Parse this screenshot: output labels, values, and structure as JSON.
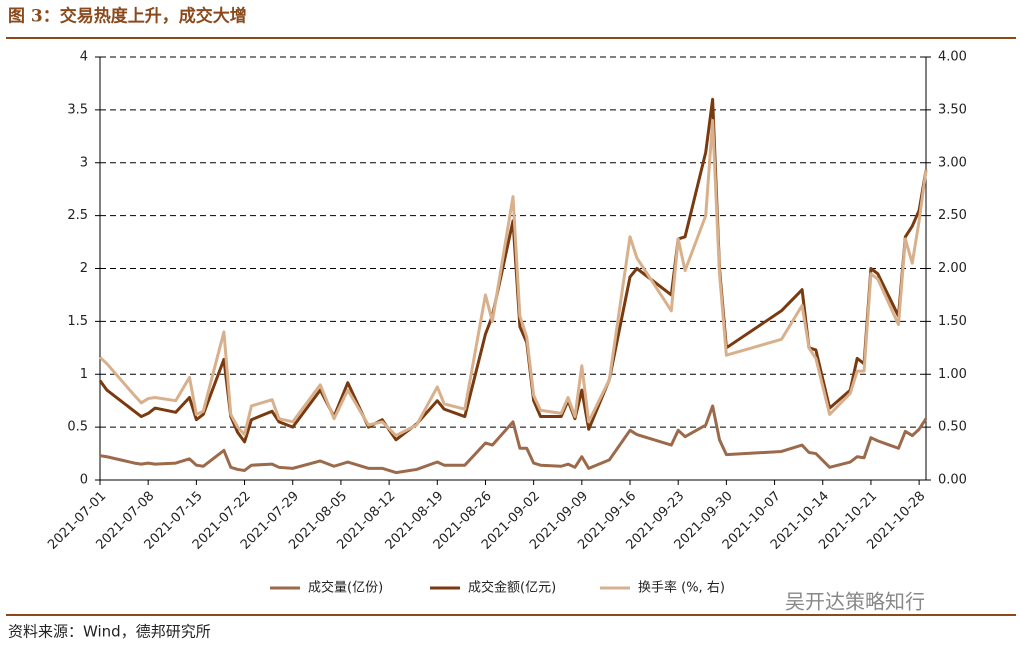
{
  "chart_data": {
    "type": "line",
    "title": "图 3：交易热度上升，成交大增",
    "source": "资料来源：Wind，德邦研究所",
    "watermark": "吴开达策略知行",
    "x": [
      "2021-07-01",
      "2021-07-02",
      "2021-07-06",
      "2021-07-07",
      "2021-07-08",
      "2021-07-09",
      "2021-07-12",
      "2021-07-14",
      "2021-07-15",
      "2021-07-16",
      "2021-07-19",
      "2021-07-20",
      "2021-07-21",
      "2021-07-22",
      "2021-07-23",
      "2021-07-26",
      "2021-07-27",
      "2021-07-29",
      "2021-08-02",
      "2021-08-04",
      "2021-08-06",
      "2021-08-09",
      "2021-08-11",
      "2021-08-13",
      "2021-08-16",
      "2021-08-19",
      "2021-08-20",
      "2021-08-23",
      "2021-08-26",
      "2021-08-27",
      "2021-08-30",
      "2021-08-31",
      "2021-09-01",
      "2021-09-02",
      "2021-09-03",
      "2021-09-06",
      "2021-09-07",
      "2021-09-08",
      "2021-09-09",
      "2021-09-10",
      "2021-09-13",
      "2021-09-16",
      "2021-09-17",
      "2021-09-22",
      "2021-09-23",
      "2021-09-24",
      "2021-09-27",
      "2021-09-28",
      "2021-09-29",
      "2021-09-30",
      "2021-10-08",
      "2021-10-11",
      "2021-10-12",
      "2021-10-13",
      "2021-10-15",
      "2021-10-18",
      "2021-10-19",
      "2021-10-20",
      "2021-10-21",
      "2021-10-22",
      "2021-10-25",
      "2021-10-26",
      "2021-10-27",
      "2021-10-28",
      "2021-10-29"
    ],
    "xlim": [
      "2021-07-01",
      "2021-10-29"
    ],
    "xticks": [
      "2021-07-01",
      "2021-07-08",
      "2021-07-15",
      "2021-07-22",
      "2021-07-29",
      "2021-08-05",
      "2021-08-12",
      "2021-08-19",
      "2021-08-26",
      "2021-09-02",
      "2021-09-09",
      "2021-09-16",
      "2021-09-23",
      "2021-09-30",
      "2021-10-07",
      "2021-10-14",
      "2021-10-21",
      "2021-10-28"
    ],
    "ylim": [
      0,
      4
    ],
    "yticks": [
      0,
      0.5,
      1,
      1.5,
      2,
      2.5,
      3,
      3.5,
      4
    ],
    "y2lim": [
      0,
      4
    ],
    "y2ticks": [
      {
        "value": 0,
        "label": "0.00"
      },
      {
        "value": 0.5,
        "label": "0.50"
      },
      {
        "value": 1,
        "label": "1.00"
      },
      {
        "value": 1.5,
        "label": "1.50"
      },
      {
        "value": 2,
        "label": "2.00"
      },
      {
        "value": 2.5,
        "label": "2.50"
      },
      {
        "value": 3,
        "label": "3.00"
      },
      {
        "value": 3.5,
        "label": "3.50"
      },
      {
        "value": 4,
        "label": "4.00"
      }
    ],
    "grid": true,
    "legend": "bottom",
    "series": [
      {
        "name": "成交量(亿份)",
        "color": "#9c6a4a",
        "values": [
          0.23,
          0.22,
          0.16,
          0.15,
          0.16,
          0.15,
          0.16,
          0.2,
          0.14,
          0.13,
          0.28,
          0.12,
          0.1,
          0.09,
          0.14,
          0.15,
          0.12,
          0.11,
          0.18,
          0.13,
          0.17,
          0.11,
          0.11,
          0.07,
          0.1,
          0.17,
          0.14,
          0.14,
          0.35,
          0.33,
          0.55,
          0.3,
          0.3,
          0.16,
          0.14,
          0.13,
          0.15,
          0.12,
          0.22,
          0.11,
          0.19,
          0.47,
          0.43,
          0.33,
          0.47,
          0.41,
          0.52,
          0.7,
          0.38,
          0.24,
          0.27,
          0.33,
          0.26,
          0.25,
          0.12,
          0.17,
          0.22,
          0.21,
          0.4,
          0.37,
          0.3,
          0.46,
          0.42,
          0.48,
          0.58
        ]
      },
      {
        "name": "成交金额(亿元)",
        "color": "#7a3a10",
        "values": [
          0.94,
          0.85,
          0.65,
          0.6,
          0.63,
          0.68,
          0.64,
          0.78,
          0.57,
          0.62,
          1.14,
          0.6,
          0.45,
          0.36,
          0.57,
          0.65,
          0.55,
          0.5,
          0.85,
          0.6,
          0.92,
          0.5,
          0.57,
          0.38,
          0.53,
          0.75,
          0.67,
          0.6,
          1.38,
          1.55,
          2.45,
          1.45,
          1.3,
          0.75,
          0.6,
          0.6,
          0.75,
          0.58,
          0.85,
          0.48,
          0.95,
          1.92,
          2.0,
          1.75,
          2.28,
          2.3,
          3.1,
          3.6,
          2.0,
          1.25,
          1.6,
          1.8,
          1.25,
          1.23,
          0.68,
          0.85,
          1.15,
          1.1,
          2.0,
          1.95,
          1.55,
          2.3,
          2.4,
          2.55,
          2.93
        ]
      },
      {
        "name": "换手率 (%, 右)",
        "color": "#d9b08c",
        "axis": "y2",
        "values": [
          1.16,
          1.1,
          0.8,
          0.73,
          0.77,
          0.78,
          0.75,
          0.97,
          0.62,
          0.65,
          1.4,
          0.62,
          0.5,
          0.43,
          0.7,
          0.76,
          0.58,
          0.55,
          0.9,
          0.58,
          0.85,
          0.52,
          0.55,
          0.42,
          0.52,
          0.88,
          0.72,
          0.67,
          1.75,
          1.5,
          2.68,
          1.55,
          1.35,
          0.8,
          0.66,
          0.63,
          0.78,
          0.6,
          1.08,
          0.55,
          0.95,
          2.3,
          2.1,
          1.6,
          2.28,
          1.98,
          2.5,
          3.4,
          1.95,
          1.18,
          1.33,
          1.65,
          1.25,
          1.15,
          0.62,
          0.82,
          1.03,
          1.03,
          1.95,
          1.9,
          1.47,
          2.28,
          2.05,
          2.45,
          2.93
        ]
      }
    ]
  }
}
